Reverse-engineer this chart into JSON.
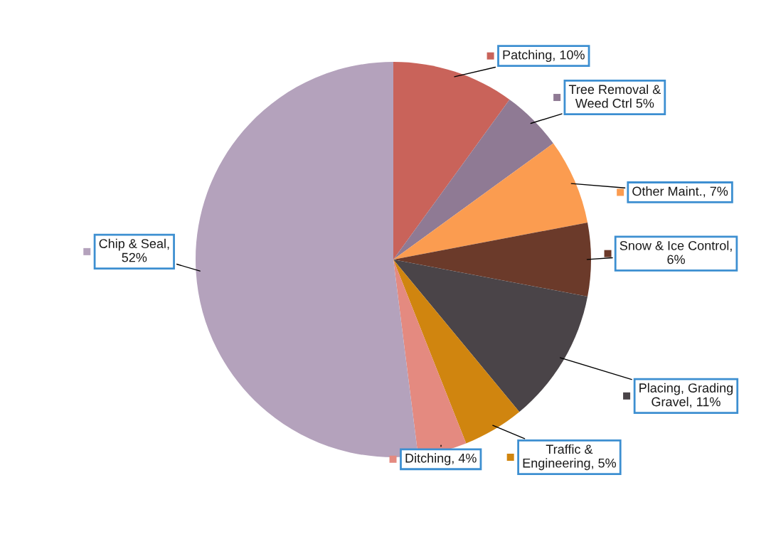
{
  "chart_data": {
    "type": "pie",
    "categories": [
      "Patching, 10%",
      "Tree Removal &\nWeed Ctrl 5%",
      "Other Maint., 7%",
      "Snow & Ice Control,\n6%",
      "Placing, Grading\nGravel, 11%",
      "Traffic &\nEngineering, 5%",
      "Ditching, 4%",
      "Chip & Seal,\n52%"
    ],
    "values": [
      10,
      5,
      7,
      6,
      11,
      5,
      4,
      52
    ],
    "legend": "right",
    "colors": [
      "#c9635a",
      "#8f7a94",
      "#fb9c50",
      "#6b3a2a",
      "#4a4448",
      "#d0850f",
      "#e48a80",
      "#b4a2bc"
    ]
  }
}
